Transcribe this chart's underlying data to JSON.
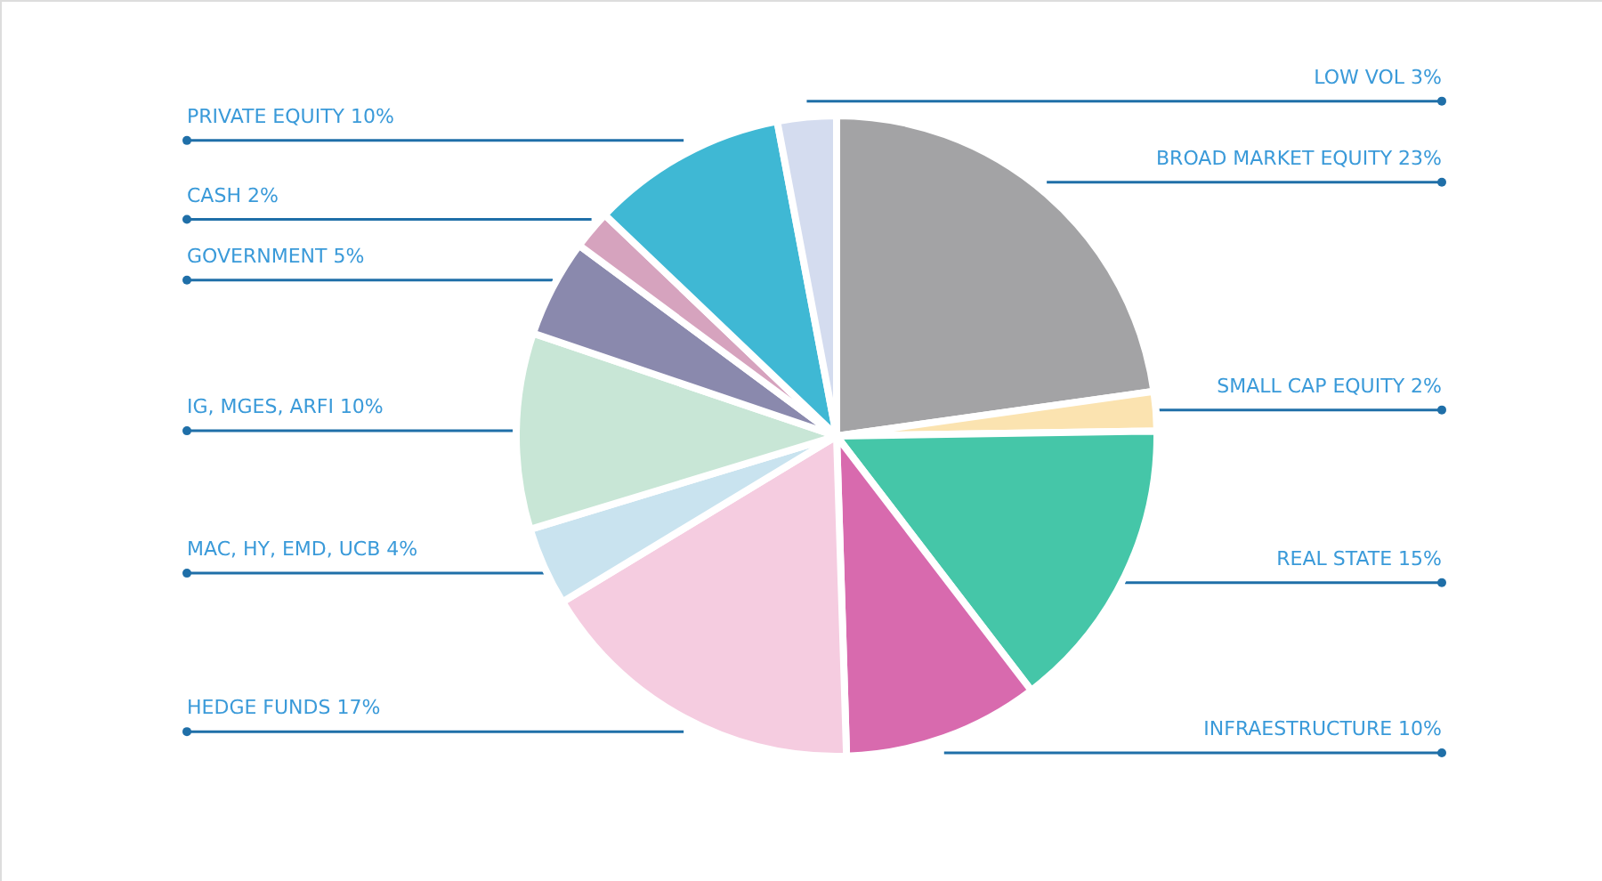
{
  "chart_data": {
    "type": "pie",
    "categories": [
      "BROAD MARKET EQUITY 23%",
      "SMALL CAP EQUITY 2%",
      "REAL STATE 15%",
      "INFRAESTRUCTURE 10%",
      "HEDGE FUNDS 17%",
      "MAC, HY, EMD, UCB 4%",
      "IG, MGES, ARFI 10%",
      "GOVERNMENT 5%",
      "CASH 2%",
      "PRIVATE EQUITY 10%",
      "LOW VOL 3%"
    ],
    "values": [
      23,
      2,
      15,
      10,
      17,
      4,
      10,
      5,
      2,
      10,
      3
    ],
    "colors": [
      "#a3a3a5",
      "#fbe3b0",
      "#45c6a8",
      "#d86aae",
      "#f5cce0",
      "#c9e3ef",
      "#c8e6d6",
      "#8a89ad",
      "#d6a3be",
      "#3fb8d4",
      "#d4dcef"
    ]
  }
}
